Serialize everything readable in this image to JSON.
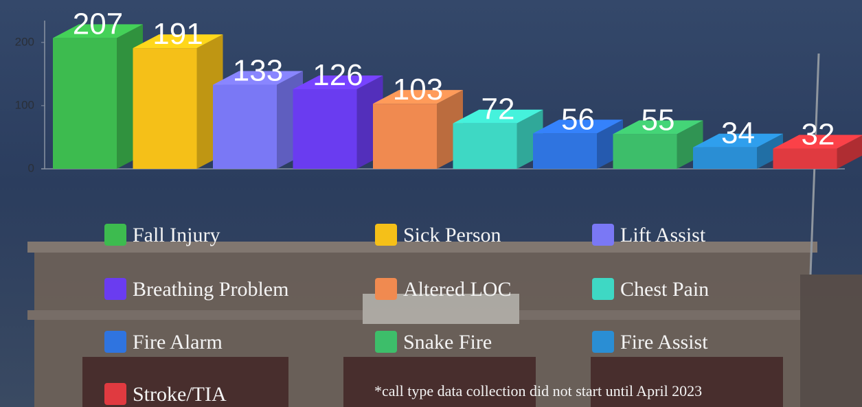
{
  "chart_data": {
    "type": "bar3d",
    "categories": [
      "Fall Injury",
      "Sick Person",
      "Lift Assist",
      "Breathing Problem",
      "Altered LOC",
      "Chest Pain",
      "Fire Alarm",
      "Snake Fire",
      "Fire Assist",
      "Stroke/TIA"
    ],
    "values": [
      207,
      191,
      133,
      126,
      103,
      72,
      56,
      55,
      34,
      32
    ],
    "colors": [
      "#3dbb4f",
      "#f5c018",
      "#7a78f5",
      "#6a3cf0",
      "#f08a50",
      "#3ed8c4",
      "#2f74e0",
      "#3dbe6a",
      "#2a8ed4",
      "#e03a40"
    ],
    "ylim": [
      0,
      240
    ],
    "yticks": [
      0,
      100,
      200
    ],
    "legend": "bottom",
    "note": "*call type data collection did not start until April 2023"
  }
}
